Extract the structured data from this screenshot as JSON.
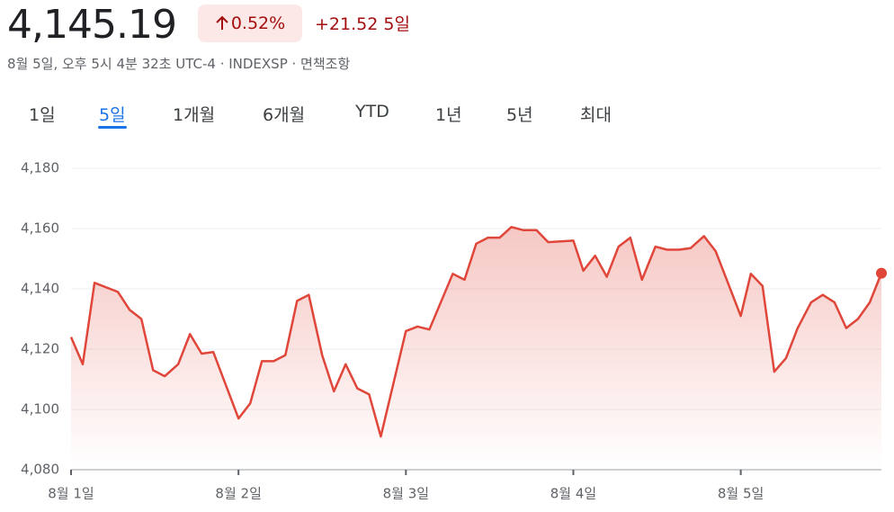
{
  "header": {
    "price": "4,145.19",
    "change_percent": "0.52%",
    "change": "+21.52",
    "period": "5일",
    "subtitle": "8월 5일, 오후 5시 4분 32초 UTC-4 · INDEXSP · 면책조항"
  },
  "tabs": [
    "1일",
    "5일",
    "1개월",
    "6개월",
    "YTD",
    "1년",
    "5년",
    "최대"
  ],
  "selected_tab": 1,
  "chart_data": {
    "type": "area",
    "color": "#e0463a",
    "grid": true,
    "x": [
      0,
      0.07,
      0.14,
      0.28,
      0.35,
      0.42,
      0.49,
      0.56,
      0.64,
      0.71,
      0.78,
      0.85,
      1,
      1.07,
      1.14,
      1.21,
      1.28,
      1.35,
      1.42,
      1.5,
      1.57,
      1.64,
      1.71,
      1.78,
      1.85,
      2,
      2.07,
      2.14,
      2.28,
      2.35,
      2.42,
      2.49,
      2.56,
      2.63,
      2.7,
      2.78,
      2.85,
      3,
      3.06,
      3.13,
      3.2,
      3.27,
      3.34,
      3.41,
      3.49,
      3.56,
      3.63,
      3.7,
      3.78,
      3.85,
      4,
      4.06,
      4.13,
      4.2,
      4.27,
      4.34,
      4.42,
      4.49,
      4.56,
      4.63,
      4.7,
      4.77,
      4.84
    ],
    "values": [
      4124,
      4115,
      4142,
      4139,
      4133,
      4130,
      4113,
      4111,
      4115,
      4125,
      4118.5,
      4119,
      4097,
      4102,
      4116,
      4116,
      4118,
      4136,
      4138,
      4118,
      4106,
      4115,
      4107,
      4105,
      4091,
      4126,
      4127.5,
      4126.5,
      4145,
      4143,
      4155,
      4157,
      4157,
      4160.5,
      4159.5,
      4159.5,
      4155.5,
      4156,
      4146,
      4151,
      4144,
      4154,
      4157,
      4143,
      4154,
      4153,
      4153,
      4153.5,
      4157.5,
      4152.5,
      4131,
      4145,
      4141,
      4112.5,
      4117,
      4127,
      4135.5,
      4138,
      4135.5,
      4127,
      4130,
      4135.5,
      4145.19
    ],
    "xlim": [
      0,
      4.84
    ],
    "xticks": [
      {
        "value": 0,
        "label": "8월 1일"
      },
      {
        "value": 1,
        "label": "8월 2일"
      },
      {
        "value": 2,
        "label": "8월 3일"
      },
      {
        "value": 3,
        "label": "8월 4일"
      },
      {
        "value": 4,
        "label": "8월 5일"
      }
    ],
    "ylim": [
      4080,
      4180
    ],
    "yticks": [
      {
        "value": 4080,
        "label": "4,080"
      },
      {
        "value": 4100,
        "label": "4,100"
      },
      {
        "value": 4120,
        "label": "4,120"
      },
      {
        "value": 4140,
        "label": "4,140"
      },
      {
        "value": 4160,
        "label": "4,160"
      },
      {
        "value": 4180,
        "label": "4,180"
      }
    ]
  }
}
